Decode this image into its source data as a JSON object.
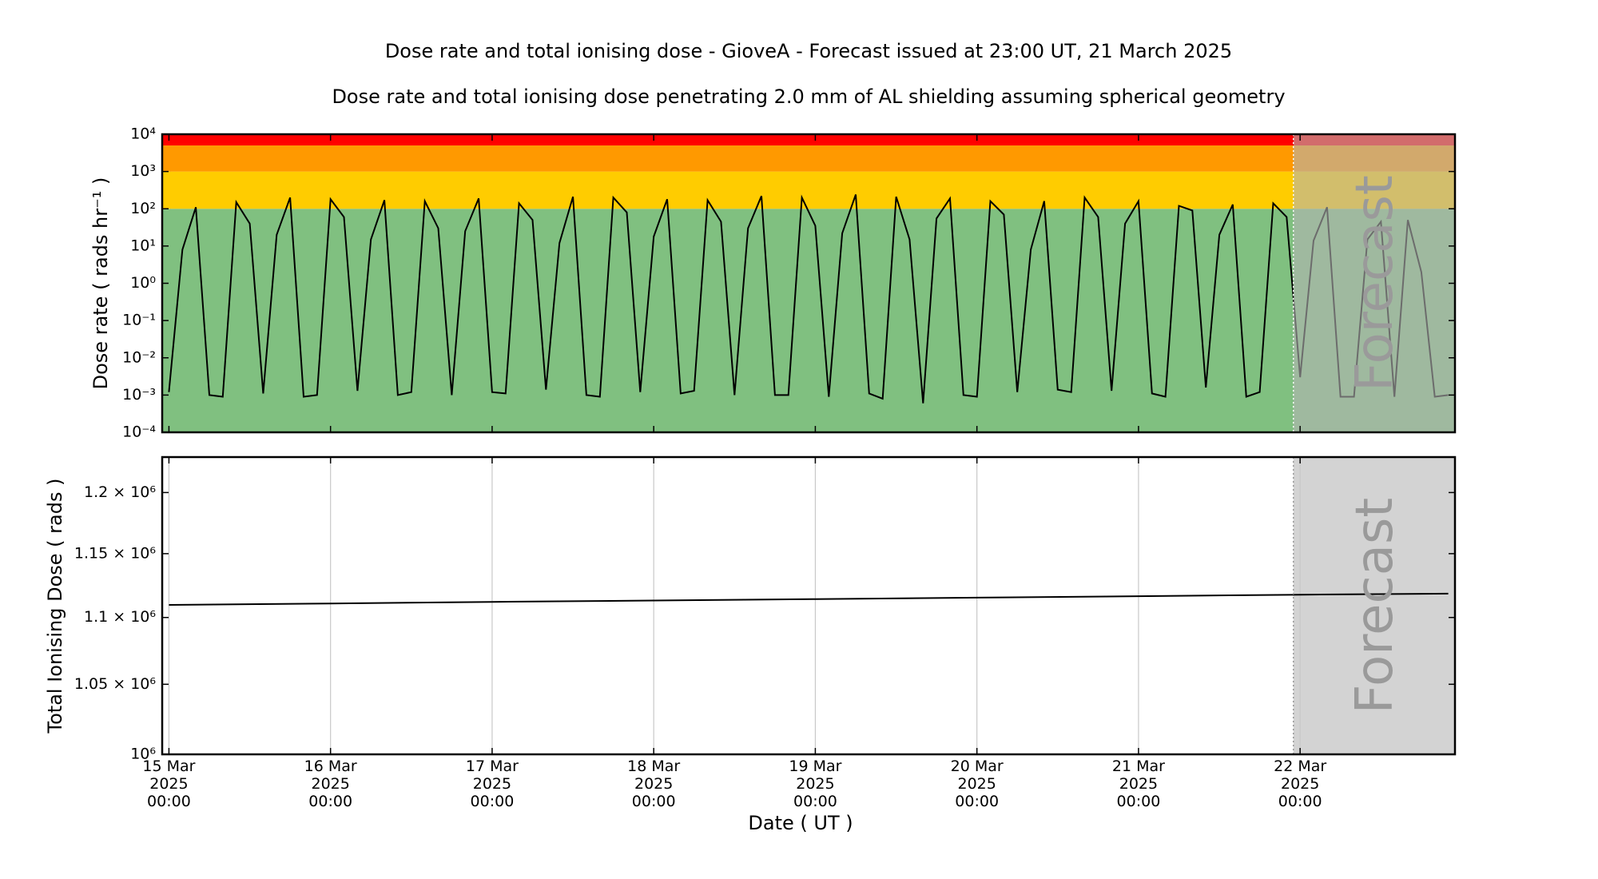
{
  "chart_data": [
    {
      "type": "line",
      "title": "Dose rate and total ionising dose - GioveA - Forecast issued at 23:00 UT, 21 March 2025",
      "subtitle": "Dose rate and total ionising dose penetrating 2.0 mm of AL shielding assuming spherical geometry",
      "ylabel": "Dose rate ( rads hr⁻¹ )",
      "log_y": true,
      "grid": false,
      "color": "#000000",
      "xlim": [
        -1,
        191
      ],
      "ylim": [
        0.0001,
        10000
      ],
      "yticks": [
        {
          "value": 0.0001,
          "label": "10⁻⁴"
        },
        {
          "value": 0.001,
          "label": "10⁻³"
        },
        {
          "value": 0.01,
          "label": "10⁻²"
        },
        {
          "value": 0.1,
          "label": "10⁻¹"
        },
        {
          "value": 1,
          "label": "10⁰"
        },
        {
          "value": 10,
          "label": "10¹"
        },
        {
          "value": 100,
          "label": "10²"
        },
        {
          "value": 1000,
          "label": "10³"
        },
        {
          "value": 10000,
          "label": "10⁴"
        }
      ],
      "bands": [
        {
          "from": 0.0001,
          "to": 100,
          "color": "#80c080"
        },
        {
          "from": 100,
          "to": 1000,
          "color": "#ffcc00"
        },
        {
          "from": 1000,
          "to": 5000,
          "color": "#ff9900"
        },
        {
          "from": 5000,
          "to": 10000,
          "color": "#ff0000"
        }
      ],
      "forecast_start": 167,
      "forecast_label": "Forecast",
      "forecast_color": "#b4b4b4",
      "x": [
        0,
        2,
        4,
        6,
        8,
        10,
        12,
        14,
        16,
        18,
        20,
        22,
        24,
        26,
        28,
        30,
        32,
        34,
        36,
        38,
        40,
        42,
        44,
        46,
        48,
        50,
        52,
        54,
        56,
        58,
        60,
        62,
        64,
        66,
        68,
        70,
        72,
        74,
        76,
        78,
        80,
        82,
        84,
        86,
        88,
        90,
        92,
        94,
        96,
        98,
        100,
        102,
        104,
        106,
        108,
        110,
        112,
        114,
        116,
        118,
        120,
        122,
        124,
        126,
        128,
        130,
        132,
        134,
        136,
        138,
        140,
        142,
        144,
        146,
        148,
        150,
        152,
        154,
        156,
        158,
        160,
        162,
        164,
        166,
        168,
        170,
        172,
        174,
        176,
        178,
        180,
        182,
        184,
        186,
        188,
        190
      ],
      "values": [
        0.0012,
        8,
        110,
        0.001,
        0.0009,
        150,
        40,
        0.0011,
        20,
        200,
        0.0009,
        0.001,
        180,
        60,
        0.0013,
        15,
        170,
        0.001,
        0.0012,
        160,
        30,
        0.001,
        25,
        190,
        0.0012,
        0.0011,
        140,
        50,
        0.0014,
        12,
        210,
        0.001,
        0.0009,
        200,
        80,
        0.0012,
        18,
        180,
        0.0011,
        0.0013,
        170,
        45,
        0.001,
        30,
        220,
        0.001,
        0.001,
        200,
        35,
        0.0009,
        22,
        240,
        0.0011,
        0.0008,
        210,
        15,
        0.0006,
        55,
        190,
        0.001,
        0.0009,
        160,
        70,
        0.0012,
        8,
        160,
        0.0014,
        0.0012,
        200,
        60,
        0.0013,
        40,
        160,
        0.0011,
        0.0009,
        120,
        90,
        0.0016,
        20,
        130,
        0.0009,
        0.0012,
        140,
        60,
        0.003,
        14,
        110,
        0.0009,
        0.0009,
        15,
        45,
        0.0009,
        50,
        2,
        0.0009,
        0.001
      ]
    },
    {
      "type": "line",
      "ylabel": "Total Ionising Dose ( rads )",
      "xlabel": "Date ( UT )",
      "log_y": true,
      "grid": true,
      "color": "#000000",
      "xlim": [
        -1,
        191
      ],
      "ylim": [
        1000000,
        1230000
      ],
      "yticks": [
        {
          "value": 1000000,
          "label": "10⁶"
        },
        {
          "value": 1050000,
          "label": "1.05 × 10⁶"
        },
        {
          "value": 1100000,
          "label": "1.1 × 10⁶"
        },
        {
          "value": 1150000,
          "label": "1.15 × 10⁶"
        },
        {
          "value": 1200000,
          "label": "1.2 × 10⁶"
        }
      ],
      "xticks": [
        {
          "value": 0,
          "label": "15 Mar\n2025\n00:00"
        },
        {
          "value": 24,
          "label": "16 Mar\n2025\n00:00"
        },
        {
          "value": 48,
          "label": "17 Mar\n2025\n00:00"
        },
        {
          "value": 72,
          "label": "18 Mar\n2025\n00:00"
        },
        {
          "value": 96,
          "label": "19 Mar\n2025\n00:00"
        },
        {
          "value": 120,
          "label": "20 Mar\n2025\n00:00"
        },
        {
          "value": 144,
          "label": "21 Mar\n2025\n00:00"
        },
        {
          "value": 168,
          "label": "22 Mar\n2025\n00:00"
        }
      ],
      "forecast_start": 167,
      "forecast_label": "Forecast",
      "forecast_color": "#d3d3d3",
      "x": [
        0,
        24,
        48,
        72,
        96,
        120,
        144,
        168,
        190
      ],
      "values": [
        1109700,
        1110800,
        1112000,
        1113100,
        1114200,
        1115300,
        1116400,
        1117600,
        1118400
      ]
    }
  ]
}
